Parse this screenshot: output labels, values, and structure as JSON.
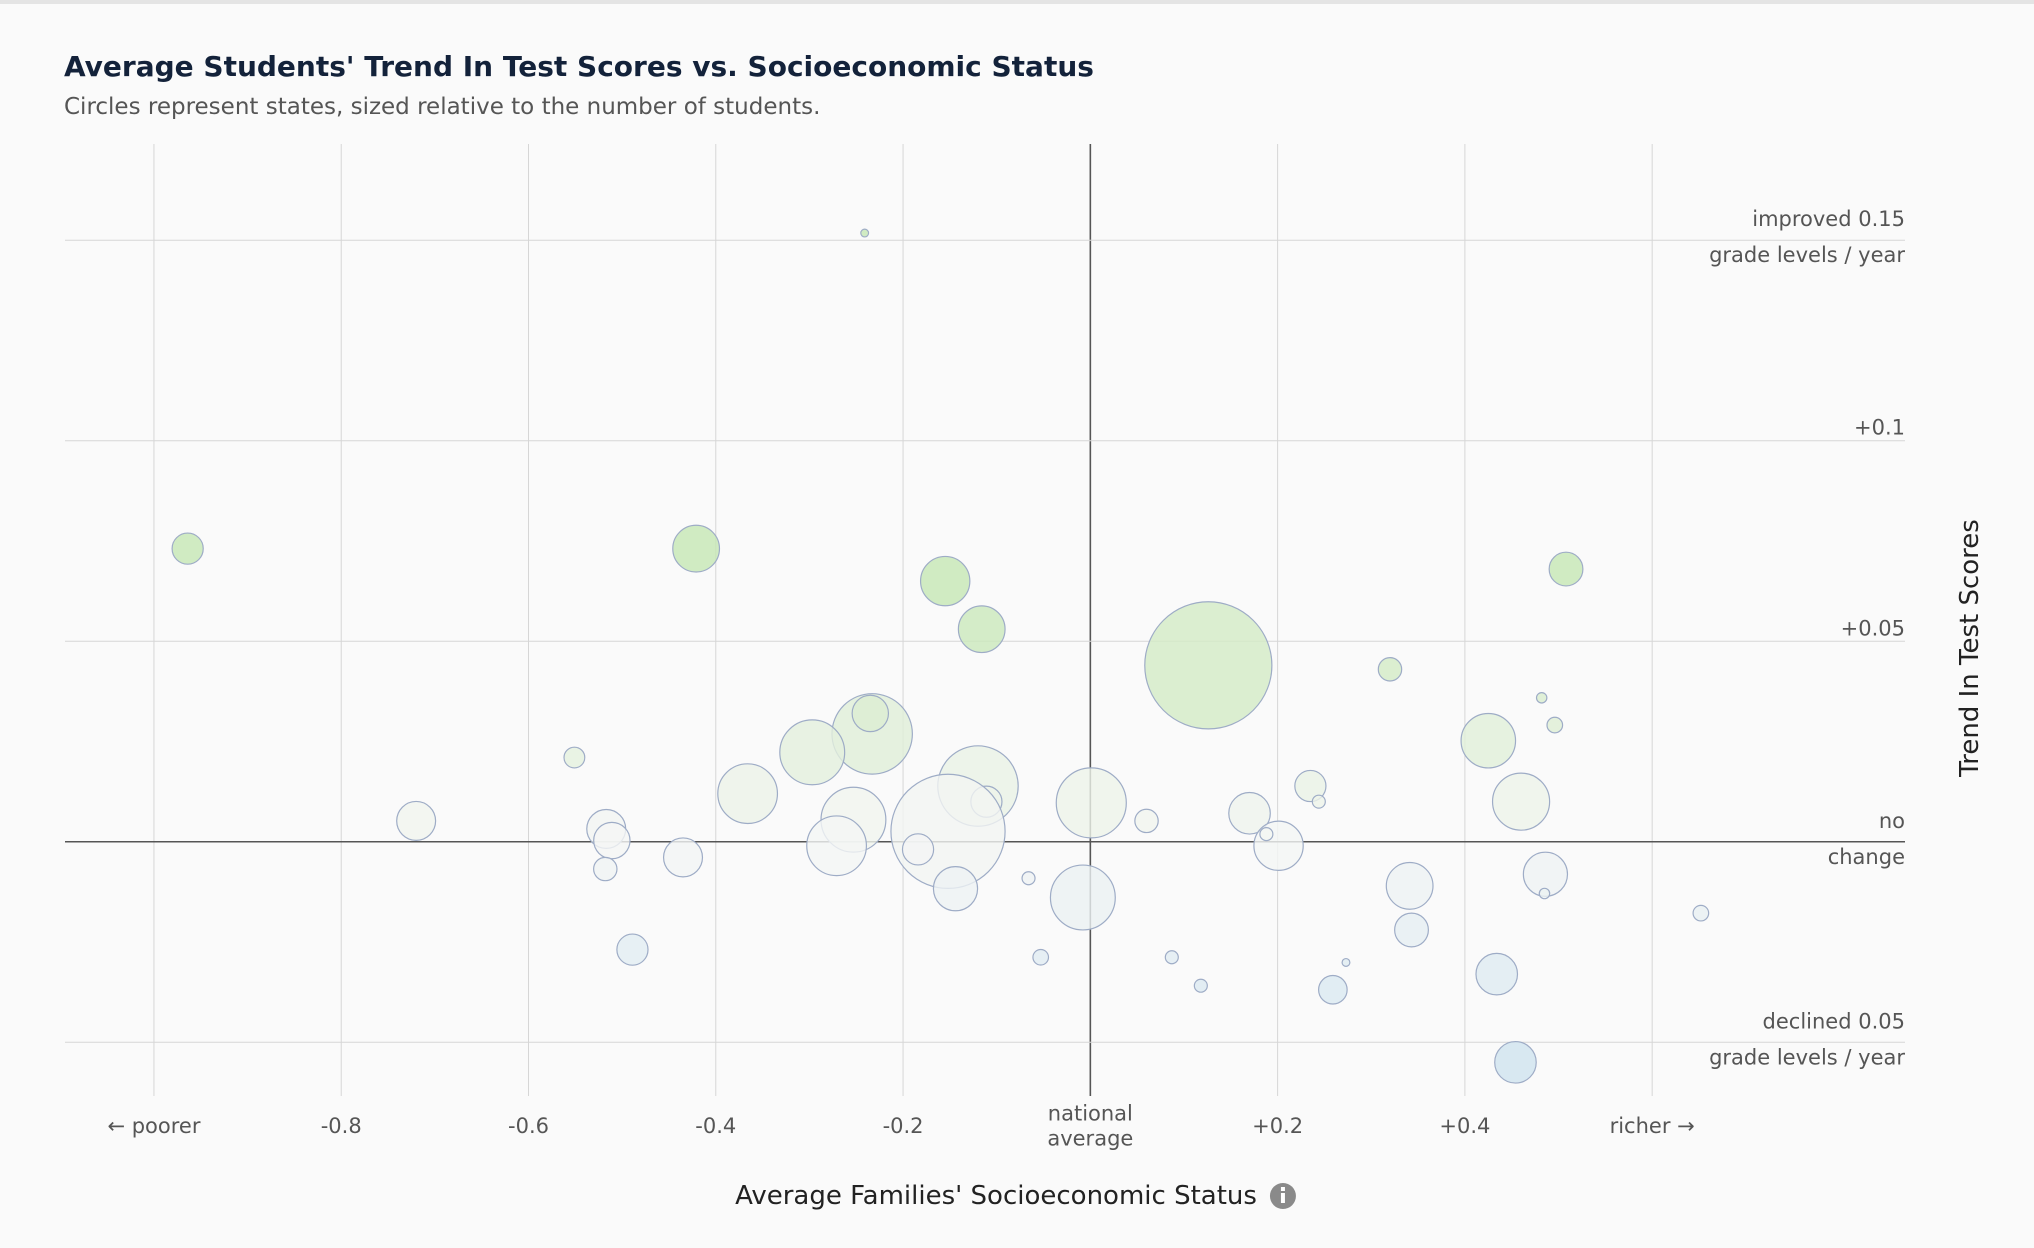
{
  "chart_data": {
    "type": "bubble",
    "title": "Average Students' Trend In Test Scores vs. Socioeconomic Status",
    "subtitle": "Circles represent states, sized relative to the number of students.",
    "x_label": "Average Families' Socioeconomic Status",
    "y_label": "Trend In Test Scores",
    "xlim": [
      -1.095,
      0.87
    ],
    "ylim": [
      -0.0634,
      0.174
    ],
    "xticks": [
      {
        "value": -1.0,
        "label": [
          "← poorer"
        ]
      },
      {
        "value": -0.8,
        "label": [
          "-0.8"
        ]
      },
      {
        "value": -0.6,
        "label": [
          "-0.6"
        ]
      },
      {
        "value": -0.4,
        "label": [
          "-0.4"
        ]
      },
      {
        "value": -0.2,
        "label": [
          "-0.2"
        ]
      },
      {
        "value": 0,
        "label": [
          "national",
          "average"
        ]
      },
      {
        "value": 0.2,
        "label": [
          "+0.2"
        ]
      },
      {
        "value": 0.4,
        "label": [
          "+0.4"
        ]
      },
      {
        "value": 0.6,
        "label": [
          "richer →"
        ]
      }
    ],
    "yticks": [
      {
        "value": 0.15,
        "label": [
          "improved 0.15",
          "grade levels / year"
        ]
      },
      {
        "value": 0.1,
        "label": [
          "+0.1"
        ]
      },
      {
        "value": 0.05,
        "label": [
          "+0.05"
        ]
      },
      {
        "value": 0,
        "label": [
          "no",
          "change"
        ]
      },
      {
        "value": -0.05,
        "label": [
          "declined 0.05",
          "grade levels / year"
        ]
      }
    ],
    "grid": true,
    "colors": {
      "improved": "#c6e7b4",
      "no_change": "#f5f6f5",
      "declined": "#cbe2ee",
      "stroke": "#9eacc6",
      "axis": "#555555",
      "grid": "#d6d6d6"
    },
    "x": [
      -0.964,
      -0.241,
      -0.421,
      -0.155,
      -0.116,
      0.508,
      0.126,
      0.32,
      -0.233,
      -0.235,
      -0.297,
      -0.551,
      -0.366,
      -0.12,
      -0.111,
      0.001,
      0.06,
      0.17,
      0.235,
      0.244,
      0.425,
      0.482,
      0.496,
      0.46,
      -0.72,
      -0.517,
      -0.511,
      -0.518,
      -0.435,
      -0.253,
      -0.271,
      -0.152,
      -0.184,
      -0.144,
      -0.066,
      -0.008,
      0.201,
      0.188,
      -0.489,
      -0.053,
      0.087,
      0.118,
      0.259,
      0.273,
      0.341,
      0.343,
      0.486,
      0.485,
      0.434,
      0.454,
      0.652
    ],
    "values": [
      0.0731,
      0.1518,
      0.0731,
      0.065,
      0.053,
      0.068,
      0.044,
      0.043,
      0.0269,
      0.032,
      0.0223,
      0.021,
      0.012,
      0.0139,
      0.01,
      0.0097,
      0.0052,
      0.0071,
      0.0139,
      0.01,
      0.0252,
      0.0359,
      0.0291,
      0.01,
      0.0052,
      0.0032,
      0.0003,
      -0.0068,
      -0.0039,
      0.0055,
      -0.001,
      0.0026,
      -0.0019,
      -0.0117,
      -0.0091,
      -0.0139,
      -0.001,
      0.0019,
      -0.0269,
      -0.0288,
      -0.0288,
      -0.0359,
      -0.0369,
      -0.0301,
      -0.011,
      -0.022,
      -0.0081,
      -0.0129,
      -0.033,
      -0.055,
      -0.0178
    ],
    "sizes": [
      144,
      9,
      324,
      361,
      324,
      169,
      2401,
      81,
      961,
      196,
      625,
      64,
      529,
      961,
      144,
      729,
      81,
      256,
      144,
      25,
      441,
      16,
      36,
      484,
      225,
      225,
      196,
      81,
      225,
      625,
      529,
      1936,
      144,
      289,
      25,
      625,
      361,
      25,
      144,
      36,
      25,
      25,
      121,
      9,
      324,
      169,
      289,
      16,
      256,
      256,
      36
    ]
  }
}
